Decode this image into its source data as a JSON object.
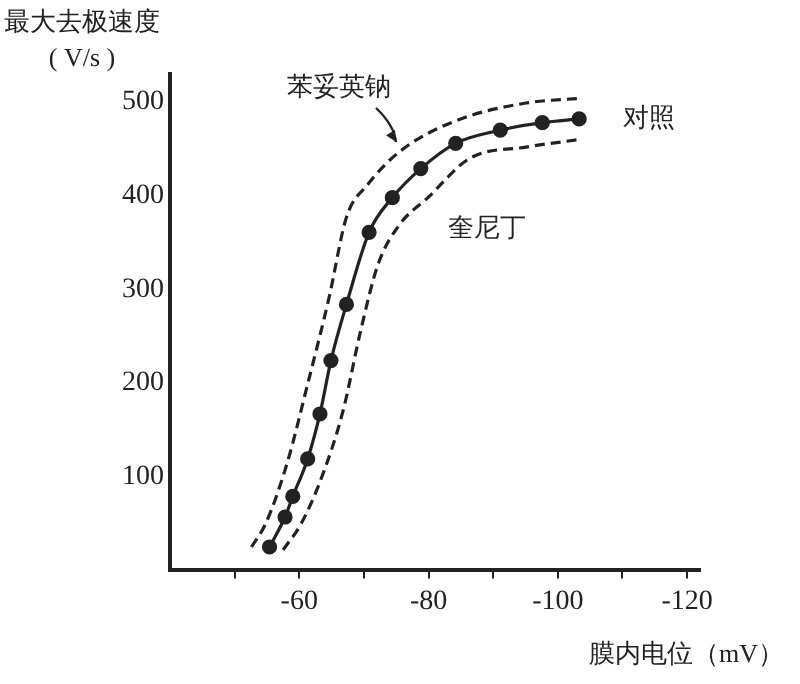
{
  "chart_data": {
    "type": "line",
    "ylabel": "最大去极速度\n( V/s )",
    "xlabel": "膜内电位（mV）",
    "xlim": [
      -40,
      -122
    ],
    "ylim": [
      0,
      530
    ],
    "xticks": [
      {
        "value": -50,
        "label": null
      },
      -60,
      {
        "value": -70,
        "label": null
      },
      -80,
      {
        "value": -90,
        "label": null
      },
      -100,
      {
        "value": -110,
        "label": null
      },
      -120
    ],
    "yticks": [
      100,
      200,
      300,
      400,
      500
    ],
    "grid": false,
    "legend": false,
    "series": [
      {
        "name": "对照",
        "color": "#222222",
        "marker": "circle",
        "line_style": "solid",
        "x": [
          -55.4,
          -57.8,
          -59.0,
          -61.3,
          -63.2,
          -64.9,
          -67.3,
          -70.8,
          -74.4,
          -78.8,
          -84.2,
          -91.1,
          -97.6,
          -103.3
        ],
        "values": [
          25,
          57,
          79,
          119,
          167,
          224,
          284,
          361,
          398,
          429,
          456,
          470,
          478,
          482
        ]
      },
      {
        "name": "苯妥英钠",
        "color": "#222222",
        "marker": "none",
        "line_style": "dashed",
        "x": [
          -52.6,
          -54.8,
          -58.1,
          -61.3,
          -64.6,
          -67.3,
          -70.6,
          -75.5,
          -84.2,
          -95.1,
          -103.3
        ],
        "values": [
          25,
          50,
          114,
          199,
          291,
          377,
          412,
          447,
          480,
          499,
          504
        ]
      },
      {
        "name": "奎尼丁",
        "color": "#222222",
        "marker": "none",
        "line_style": "dashed",
        "x": [
          -57.5,
          -60.3,
          -63.5,
          -66.8,
          -69.5,
          -72.2,
          -75.5,
          -79.9,
          -86.4,
          -95.1,
          -103.3
        ],
        "values": [
          22,
          50,
          100,
          171,
          256,
          327,
          369,
          398,
          440,
          452,
          460
        ]
      }
    ]
  }
}
